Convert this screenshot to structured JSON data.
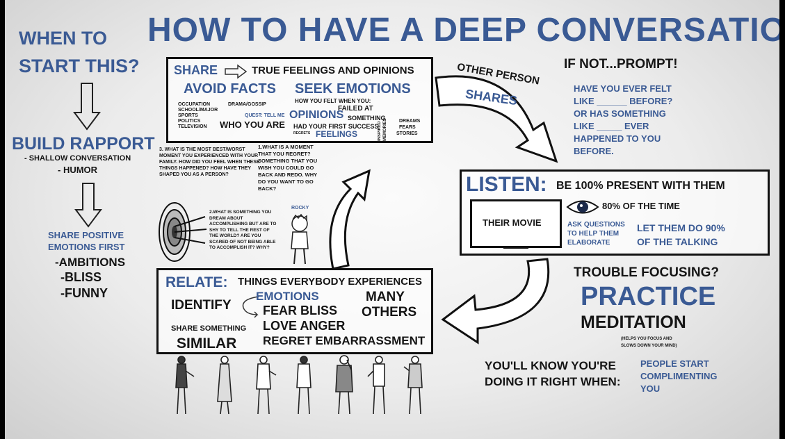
{
  "title": "HOW TO HAVE A DEEP CONVERSATION",
  "left": {
    "when": "WHEN TO",
    "start": "START THIS?",
    "build_rapport": "BUILD RAPPORT",
    "shallow": "- SHALLOW CONVERSATION",
    "humor": "- HUMOR",
    "share_positive": "SHARE POSITIVE",
    "emotions_first": "EMOTIONS FIRST",
    "ambitions": "-AMBITIONS",
    "bliss": "-BLISS",
    "funny": "-FUNNY"
  },
  "share_box": {
    "share": "SHARE",
    "true_feelings": "TRUE FEELINGS AND OPINIONS",
    "avoid_facts": "AVOID FACTS",
    "seek_emotions": "SEEK EMOTIONS",
    "occupation": "OCCUPATION",
    "school": "SCHOOL/MAJOR",
    "sports": "SPORTS",
    "politics": "POLITICS",
    "television": "TELEVISION",
    "drama": "DRAMA/GOSSIP",
    "quest": "QUEST: TELL ME",
    "who_you_are": "WHO YOU ARE",
    "how_felt": "HOW YOU FELT WHEN YOU:",
    "failed": "FAILED AT",
    "opinions": "OPINIONS",
    "something": "SOMETHING",
    "had_first": "HAD YOUR FIRST SUCCESS",
    "feelings": "FEELINGS",
    "regrets": "REGRETS",
    "dreams": "DREAMS",
    "fears": "FEARS",
    "stories": "STORIES",
    "inspired": "INSPIRED MEMORIES"
  },
  "questions": {
    "q3": "3. WHAT IS THE MOST BEST/WORST MOMENT YOU EXPERIENCED WITH YOUR FAMILY. HOW DID YOU FEEL WHEN THESE THINGS HAPPENED? HOW HAVE THEY SHAPED YOU AS A PERSON?",
    "q1": "1.WHAT IS A MOMENT THAT YOU REGRET? SOMETHING THAT YOU WISH YOU COULD GO BACK AND REDO. WHY DO YOU WANT TO GO BACK?",
    "q2": "2.WHAT IS SOMETHING YOU DREAM ABOUT ACCOMPLISHING BUT ARE TO SHY TO TELL THE REST OF THE WORLD? ARE YOU SCARED OF NOT BEING ABLE TO ACCOMPLISH IT? WHY?",
    "rocky": "ROCKY"
  },
  "right_top": {
    "other_person": "OTHER PERSON",
    "shares": "SHARES",
    "if_not": "IF NOT...PROMPT!",
    "prompt1": "HAVE YOU EVER FELT",
    "prompt2": "LIKE ______ BEFORE?",
    "prompt3": "OR HAS SOMETHING",
    "prompt4": "LIKE _____ EVER",
    "prompt5": "HAPPENED TO YOU",
    "prompt6": "BEFORE."
  },
  "listen_box": {
    "listen": "LISTEN:",
    "be_present": "BE 100% PRESENT WITH THEM",
    "their_movie": "THEIR MOVIE",
    "eighty": "80% OF THE TIME",
    "ask1": "ASK QUESTIONS",
    "ask2": "TO HELP THEM",
    "ask3": "ELABORATE",
    "let1": "LET THEM DO 90%",
    "let2": "OF THE TALKING"
  },
  "right_bottom": {
    "trouble": "TROUBLE FOCUSING?",
    "practice": "PRACTICE",
    "meditation": "MEDITATION",
    "helps1": "(HELPS YOU FOCUS AND",
    "helps2": "SLOWS DOWN YOUR MIND)",
    "youll1": "YOU'LL KNOW YOU'RE",
    "youll2": "DOING IT RIGHT WHEN:",
    "people1": "PEOPLE START",
    "people2": "COMPLIMENTING",
    "people3": "YOU"
  },
  "relate_box": {
    "relate": "RELATE:",
    "things": "THINGS EVERYBODY EXPERIENCES",
    "identify": "IDENTIFY",
    "emotions": "EMOTIONS",
    "many": "MANY",
    "others": "OTHERS",
    "fear_bliss": "FEAR BLISS",
    "love_anger": "LOVE ANGER",
    "regret_emb": "REGRET EMBARRASSMENT",
    "share_something": "SHARE SOMETHING",
    "similar": "SIMILAR"
  },
  "colors": {
    "accent_blue": "#3a5a94",
    "ink": "#151515"
  }
}
